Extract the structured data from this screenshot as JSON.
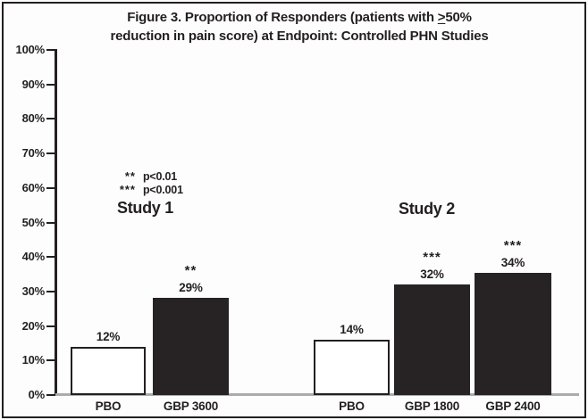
{
  "figure": {
    "title_line1_prefix": "Figure 3. Proportion of Responders (patients with ",
    "title_line1_gte": ">",
    "title_line1_suffix": "50%",
    "title_line2": "reduction in pain score) at Endpoint: Controlled PHN Studies"
  },
  "legend": {
    "entries": [
      {
        "stars": "**",
        "text": "p<0.01"
      },
      {
        "stars": "***",
        "text": "p<0.001"
      }
    ]
  },
  "chart_data": {
    "type": "bar",
    "title": "Figure 3. Proportion of Responders (patients with ≥50% reduction in pain score) at Endpoint: Controlled PHN Studies",
    "xlabel": "",
    "ylabel": "",
    "ylim": [
      0,
      100
    ],
    "grid": false,
    "yticks": [
      "100%",
      "90%",
      "80%",
      "70%",
      "60%",
      "50%",
      "40%",
      "30%",
      "20%",
      "10%",
      "0%"
    ],
    "categories": [
      "PBO",
      "GBP 3600",
      "PBO",
      "GBP 1800",
      "GBP 2400"
    ],
    "values": [
      12,
      29,
      14,
      32,
      34
    ],
    "significance_key": [
      {
        "symbol": "**",
        "meaning": "p<0.01"
      },
      {
        "symbol": "***",
        "meaning": "p<0.001"
      }
    ],
    "legend_position": "upper-left-inside",
    "groups": [
      {
        "name": "Study 1",
        "bars": [
          {
            "category": "PBO",
            "value": 12,
            "value_label": "12%",
            "significance": "",
            "fill": "white",
            "drawn_pct": 14.0
          },
          {
            "category": "GBP 3600",
            "value": 29,
            "value_label": "29%",
            "significance": "**",
            "fill": "black",
            "drawn_pct": 28.2
          }
        ]
      },
      {
        "name": "Study 2",
        "bars": [
          {
            "category": "PBO",
            "value": 14,
            "value_label": "14%",
            "significance": "",
            "fill": "white",
            "drawn_pct": 15.9
          },
          {
            "category": "GBP 1800",
            "value": 32,
            "value_label": "32%",
            "significance": "***",
            "fill": "black",
            "drawn_pct": 32.1
          },
          {
            "category": "GBP 2400",
            "value": 34,
            "value_label": "34%",
            "significance": "***",
            "fill": "black",
            "drawn_pct": 35.3
          }
        ]
      }
    ]
  },
  "colors": {
    "ink": "#231f20",
    "bar_fill": "#272324",
    "bar_white": "#ffffff",
    "baseline_gray": "#a9abae",
    "background": "#fdfdfd"
  }
}
